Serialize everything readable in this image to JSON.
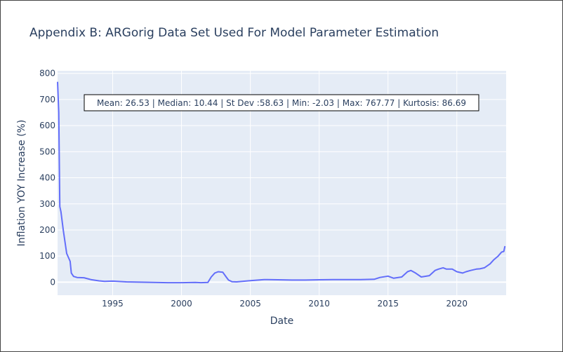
{
  "chart_data": {
    "type": "line",
    "title": "Appendix B: ARGorig Data Set Used For Model Parameter Estimation",
    "xlabel": "Date",
    "ylabel": "Inflation YOY Increase (%)",
    "xlim": [
      "1991-01-01",
      "2023-08-01"
    ],
    "ylim": [
      -50,
      810
    ],
    "x_ticks": [
      "1995",
      "2000",
      "2005",
      "2010",
      "2015",
      "2020"
    ],
    "y_ticks": [
      0,
      100,
      200,
      300,
      400,
      500,
      600,
      700,
      800
    ],
    "grid": true,
    "annotation": "Mean: 26.53 | Median: 10.44 | St Dev :58.63 | Min: -2.03 | Max: 767.77 | Kurtosis: 86.69",
    "colors": {
      "line": "#636efa",
      "plot_bg": "#e5ecf6",
      "grid": "#ffffff",
      "text": "#2a3f5f"
    },
    "series": [
      {
        "x": [
          "1991-01-01",
          "1991-02-01",
          "1991-03-01",
          "1991-04-01",
          "1991-06-01",
          "1991-09-01",
          "1991-12-01",
          "1992-01-01",
          "1992-03-01",
          "1992-06-01",
          "1992-12-01",
          "1993-06-01",
          "1994-01-01",
          "1994-06-01",
          "1995-01-01",
          "1996-01-01",
          "1997-01-01",
          "1998-01-01",
          "1999-01-01",
          "2000-01-01",
          "2001-01-01",
          "2001-06-01",
          "2001-12-01",
          "2002-03-01",
          "2002-06-01",
          "2002-09-01",
          "2003-01-01",
          "2003-04-01",
          "2003-06-01",
          "2003-09-01",
          "2004-01-01",
          "2004-06-01",
          "2005-01-01",
          "2006-01-01",
          "2007-01-01",
          "2008-01-01",
          "2009-01-01",
          "2010-01-01",
          "2011-01-01",
          "2012-01-01",
          "2013-01-01",
          "2014-01-01",
          "2014-06-01",
          "2015-01-01",
          "2015-06-01",
          "2016-01-01",
          "2016-06-01",
          "2016-09-01",
          "2017-01-01",
          "2017-06-01",
          "2018-01-01",
          "2018-06-01",
          "2018-09-01",
          "2019-01-01",
          "2019-04-01",
          "2019-09-01",
          "2020-01-01",
          "2020-06-01",
          "2020-09-01",
          "2021-01-01",
          "2021-06-01",
          "2021-09-01",
          "2022-01-01",
          "2022-06-01",
          "2022-09-01",
          "2023-01-01",
          "2023-04-01",
          "2023-06-01",
          "2023-07-01"
        ],
        "y": [
          767.77,
          650,
          290,
          270,
          200,
          110,
          80,
          35,
          22,
          18,
          17,
          10,
          5,
          3,
          4,
          1,
          0,
          -1,
          -2,
          -2,
          -1,
          -2,
          -1,
          20,
          35,
          40,
          38,
          20,
          8,
          2,
          1,
          3,
          6,
          10,
          9,
          8,
          8,
          9,
          10,
          10,
          10,
          11,
          18,
          23,
          15,
          20,
          40,
          45,
          35,
          20,
          25,
          45,
          50,
          55,
          50,
          50,
          40,
          35,
          40,
          45,
          50,
          51,
          55,
          70,
          85,
          100,
          115,
          118,
          138
        ]
      }
    ]
  }
}
